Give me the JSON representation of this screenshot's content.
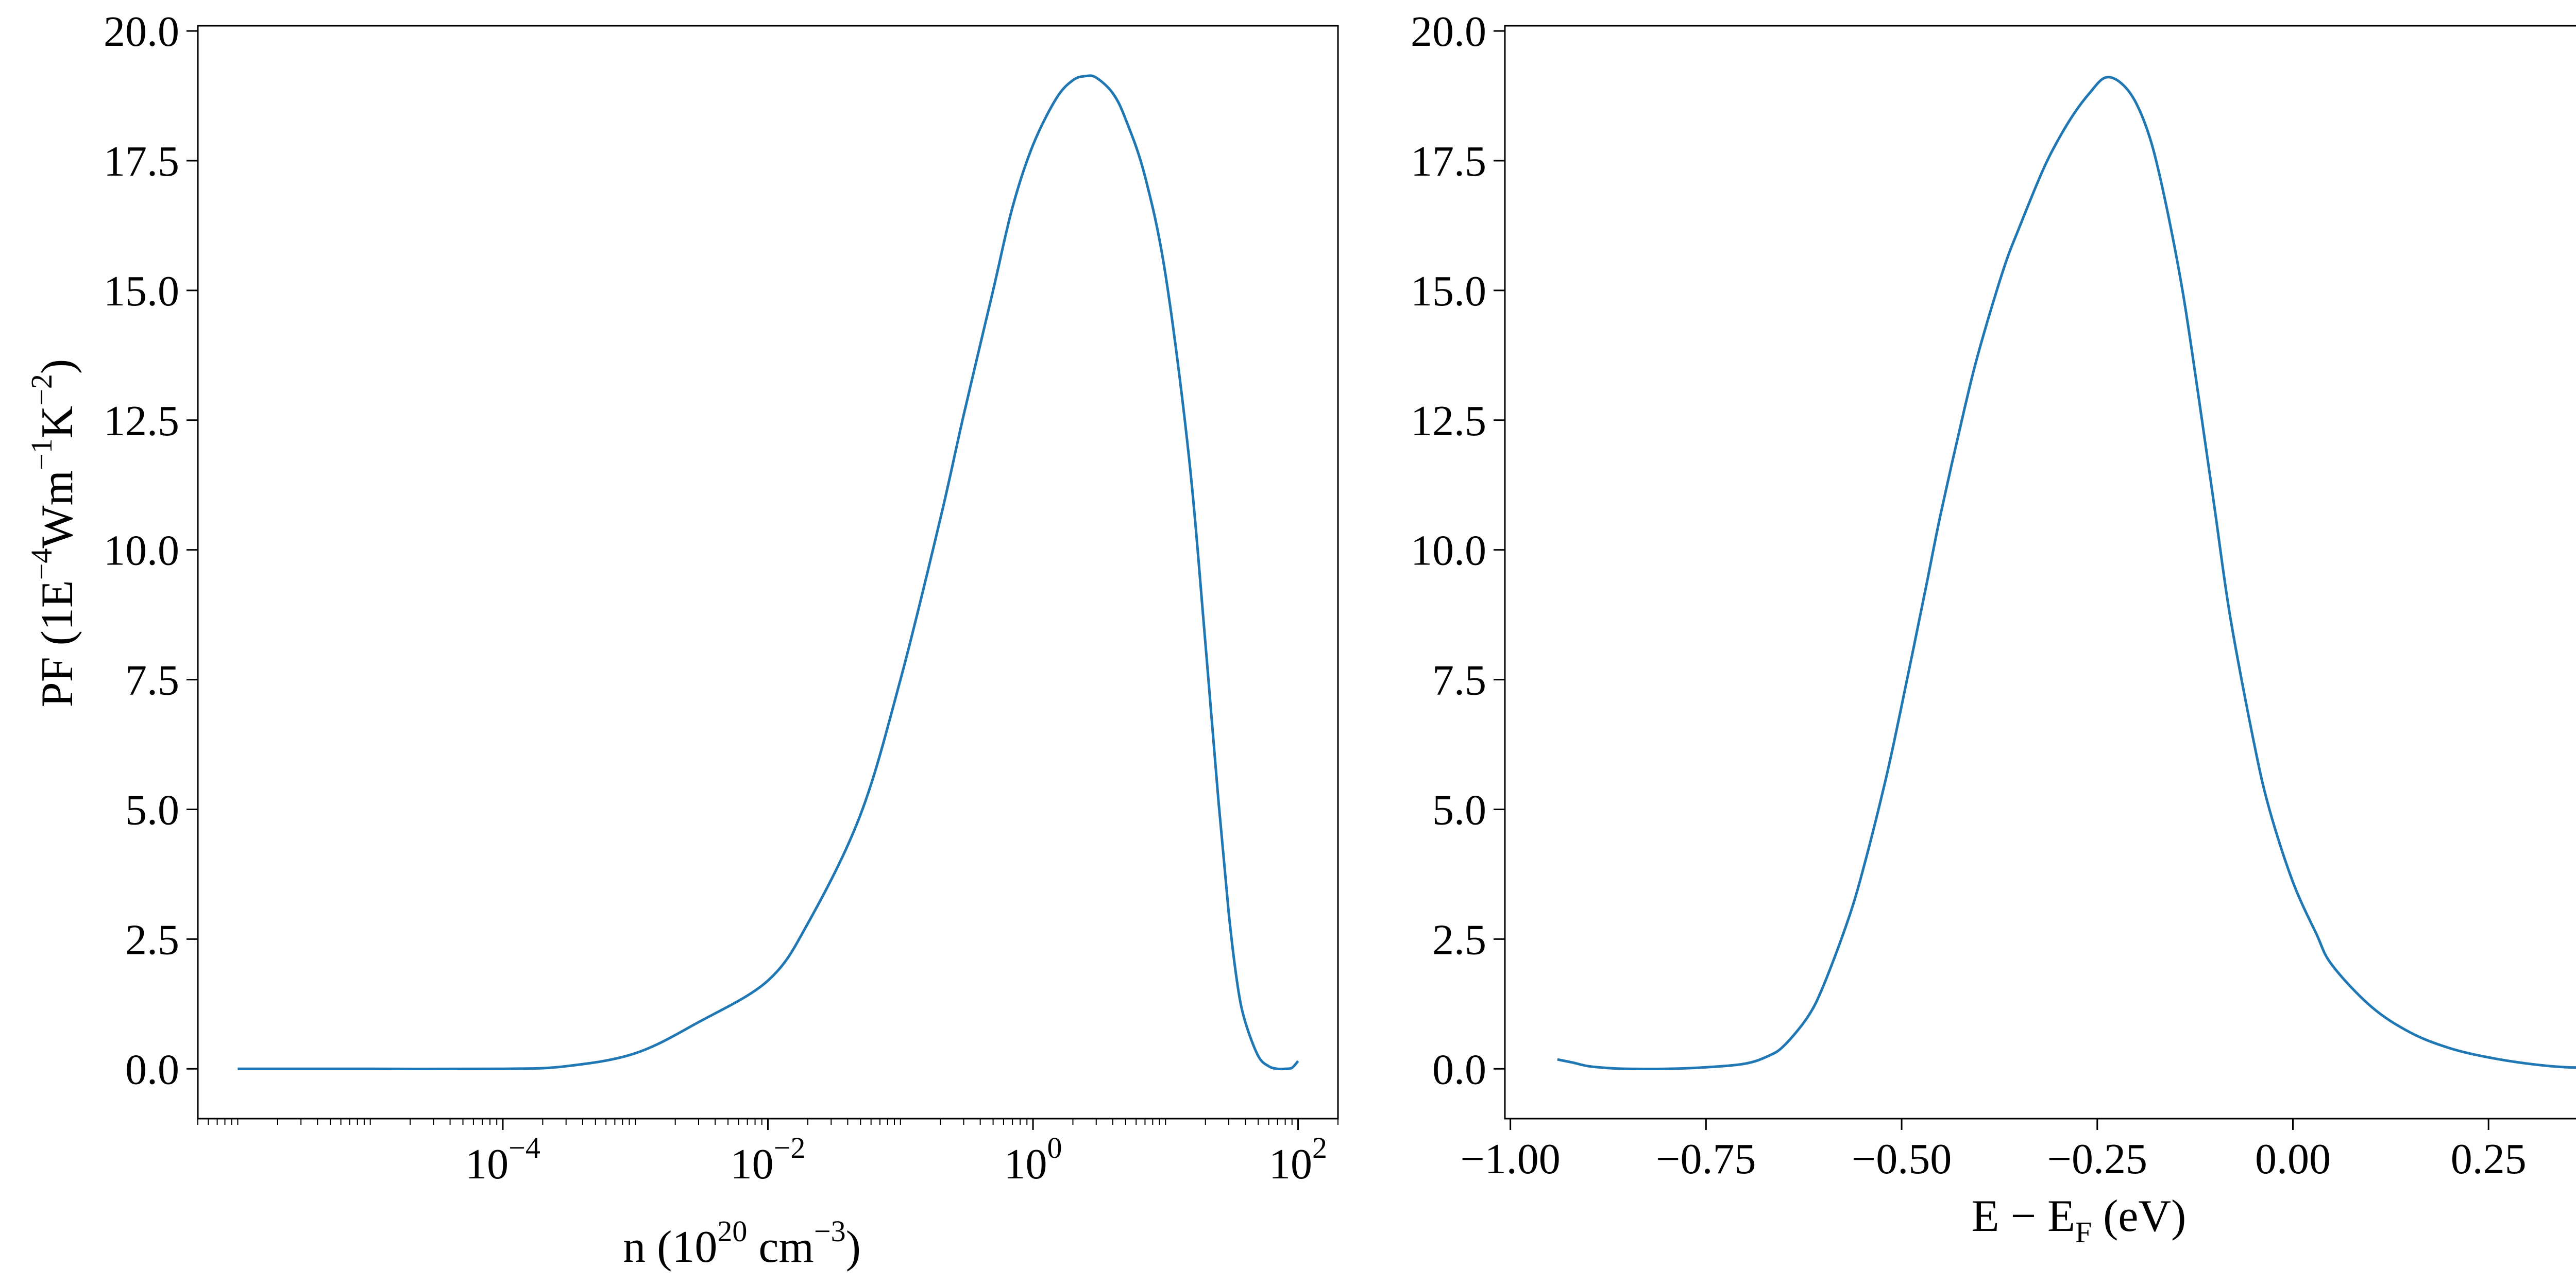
{
  "colors": {
    "line": "#1f77b4",
    "axes": "#000000",
    "background": "#ffffff"
  },
  "chart_data": [
    {
      "type": "line",
      "title": "",
      "xscale": "log",
      "xlim": [
        5e-07,
        200
      ],
      "ylim": [
        -0.96,
        20.1
      ],
      "grid": false,
      "legend": "none",
      "xlabel": {
        "main": "n (10",
        "exp": "20",
        "mid": " cm",
        "exp2": "−3",
        "end": ")"
      },
      "ylabel": {
        "main": "PF (1E",
        "exp": "−4",
        "mid": "Wm",
        "exp2": "−1",
        "mid2": "K",
        "exp3": "−2",
        "end": ")"
      },
      "yticks": [
        "0.0",
        "2.5",
        "5.0",
        "7.5",
        "10.0",
        "12.5",
        "15.0",
        "17.5",
        "20.0"
      ],
      "xticks": [
        {
          "value": 0.0001,
          "base": "10",
          "exp": "−4"
        },
        {
          "value": 0.01,
          "base": "10",
          "exp": "−2"
        },
        {
          "value": 1,
          "base": "10",
          "exp": "0"
        },
        {
          "value": 100,
          "base": "10",
          "exp": "2"
        }
      ],
      "series": [
        {
          "x": [
            1e-06,
            1e-05,
            0.0001,
            0.0003,
            0.001,
            0.003,
            0.01,
            0.02,
            0.05,
            0.1,
            0.2,
            0.3,
            0.5,
            0.7,
            1.0,
            1.5,
            2.0,
            2.5,
            3.0,
            4.0,
            5.0,
            7.0,
            10,
            15,
            20,
            25,
            30,
            35,
            40,
            50,
            60,
            70,
            80,
            90,
            100
          ],
          "y": [
            0.0,
            0.0,
            0.0,
            0.05,
            0.3,
            0.9,
            1.7,
            2.8,
            4.9,
            7.5,
            10.6,
            12.6,
            15.0,
            16.6,
            17.8,
            18.7,
            19.05,
            19.13,
            19.1,
            18.8,
            18.3,
            17.2,
            15.3,
            11.8,
            8.2,
            5.2,
            3.0,
            1.6,
            0.9,
            0.25,
            0.05,
            0.0,
            0.0,
            0.02,
            0.15
          ]
        }
      ]
    },
    {
      "type": "line",
      "title": "",
      "xscale": "linear",
      "xlim": [
        -1.007,
        0.45
      ],
      "ylim": [
        -0.96,
        20.1
      ],
      "grid": false,
      "legend": "none",
      "xlabel": {
        "main": "E − E",
        "sub": "F",
        "end": " (eV)"
      },
      "yticks": [
        "0.0",
        "2.5",
        "5.0",
        "7.5",
        "10.0",
        "12.5",
        "15.0",
        "17.5",
        "20.0"
      ],
      "xticks": [
        {
          "value": -1.0,
          "label": "−1.00"
        },
        {
          "value": -0.75,
          "label": "−0.75"
        },
        {
          "value": -0.5,
          "label": "−0.50"
        },
        {
          "value": -0.25,
          "label": "−0.25"
        },
        {
          "value": 0.0,
          "label": "0.00"
        },
        {
          "value": 0.25,
          "label": "0.25"
        }
      ],
      "series": [
        {
          "x": [
            -0.94,
            -0.92,
            -0.9,
            -0.87,
            -0.85,
            -0.8,
            -0.75,
            -0.7,
            -0.67,
            -0.65,
            -0.62,
            -0.6,
            -0.57,
            -0.55,
            -0.52,
            -0.5,
            -0.47,
            -0.45,
            -0.42,
            -0.4,
            -0.37,
            -0.35,
            -0.32,
            -0.3,
            -0.28,
            -0.26,
            -0.24,
            -0.22,
            -0.2,
            -0.18,
            -0.16,
            -0.14,
            -0.12,
            -0.1,
            -0.08,
            -0.05,
            -0.03,
            0.0,
            0.03,
            0.05,
            0.1,
            0.15,
            0.2,
            0.25,
            0.3,
            0.35,
            0.4
          ],
          "y": [
            0.18,
            0.12,
            0.05,
            0.01,
            0.0,
            0.0,
            0.03,
            0.1,
            0.25,
            0.45,
            1.0,
            1.6,
            2.8,
            3.8,
            5.6,
            7.0,
            9.2,
            10.7,
            12.7,
            13.9,
            15.4,
            16.2,
            17.3,
            17.9,
            18.4,
            18.8,
            19.1,
            19.0,
            18.6,
            17.8,
            16.5,
            14.9,
            12.9,
            10.8,
            8.7,
            6.3,
            5.0,
            3.6,
            2.6,
            2.0,
            1.2,
            0.7,
            0.4,
            0.22,
            0.1,
            0.03,
            0.03
          ]
        }
      ]
    }
  ]
}
